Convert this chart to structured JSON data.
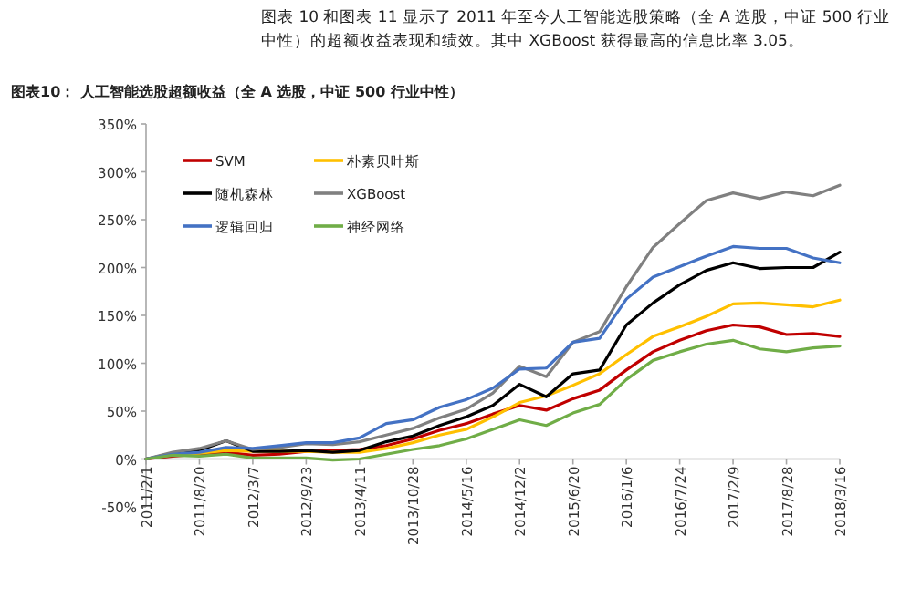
{
  "chart_data": {
    "type": "line",
    "title": "图表10： 人工智能选股超额收益（全 A 选股，中证 500 行业中性）",
    "annotations": [
      "图表 10 和图表 11 显示了 2011 年至今人工智能选股策略（全 A 选股，中证 500 行业中性）的超额收益表现和绩效。其中 XGBoost 获得最高的信息比率 3.05。"
    ],
    "categories": [
      "2011/2/1",
      null,
      "2011/8/20",
      null,
      "2012/3/7",
      null,
      "2012/9/23",
      null,
      "2013/4/11",
      null,
      "2013/10/28",
      null,
      "2014/5/16",
      null,
      "2014/12/2",
      null,
      "2015/6/20",
      null,
      "2016/1/6",
      null,
      "2016/7/24",
      null,
      "2017/2/9",
      null,
      "2017/8/28",
      null,
      "2018/3/16"
    ],
    "series": [
      {
        "name": "SVM",
        "color": "#c00000",
        "values": [
          0,
          3,
          5,
          7,
          4,
          5,
          8,
          9,
          10,
          14,
          21,
          30,
          37,
          47,
          56,
          51,
          63,
          72,
          93,
          112,
          124,
          134,
          140,
          138,
          130,
          131,
          128
        ]
      },
      {
        "name": "朴素贝叶斯",
        "color": "#ffc000",
        "values": [
          0,
          5,
          6,
          9,
          8,
          8,
          8,
          7,
          7,
          11,
          17,
          25,
          31,
          44,
          59,
          66,
          77,
          89,
          109,
          128,
          138,
          149,
          162,
          163,
          161,
          159,
          166
        ]
      },
      {
        "name": "随机森林",
        "color": "#000000",
        "values": [
          0,
          6,
          9,
          19,
          8,
          8,
          9,
          7,
          9,
          18,
          24,
          35,
          44,
          56,
          78,
          65,
          89,
          93,
          140,
          163,
          182,
          197,
          205,
          199,
          200,
          200,
          216
        ]
      },
      {
        "name": "XGBoost",
        "color": "#808080",
        "values": [
          0,
          7,
          11,
          19,
          10,
          12,
          16,
          15,
          18,
          25,
          32,
          43,
          52,
          69,
          97,
          86,
          122,
          133,
          180,
          221,
          246,
          270,
          278,
          272,
          279,
          275,
          286
        ]
      },
      {
        "name": "逻辑回归",
        "color": "#4472c4",
        "values": [
          0,
          5,
          7,
          12,
          11,
          14,
          17,
          17,
          22,
          37,
          41,
          54,
          62,
          74,
          94,
          95,
          122,
          126,
          167,
          190,
          201,
          212,
          222,
          220,
          220,
          210,
          205
        ]
      },
      {
        "name": "神经网络",
        "color": "#70ad47",
        "values": [
          0,
          4,
          3,
          5,
          1,
          1,
          1,
          -1,
          0,
          5,
          10,
          14,
          21,
          31,
          41,
          35,
          48,
          57,
          83,
          103,
          112,
          120,
          124,
          115,
          112,
          116,
          118
        ]
      }
    ],
    "ylim": [
      -50,
      350
    ],
    "yticks": [
      {
        "value": -50,
        "label": "-50%"
      },
      {
        "value": 0,
        "label": "0%"
      },
      {
        "value": 50,
        "label": "50%"
      },
      {
        "value": 100,
        "label": "100%"
      },
      {
        "value": 150,
        "label": "150%"
      },
      {
        "value": 200,
        "label": "200%"
      },
      {
        "value": 250,
        "label": "250%"
      },
      {
        "value": 300,
        "label": "300%"
      },
      {
        "value": 350,
        "label": "350%"
      }
    ],
    "legend": "top left"
  }
}
